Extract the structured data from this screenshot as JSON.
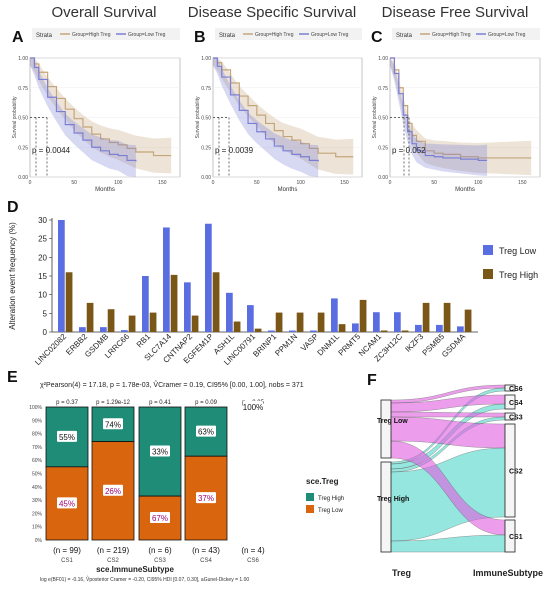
{
  "panels": {
    "A": {
      "label": "A",
      "title": "Overall Survival",
      "p": "p = 0.0044"
    },
    "B": {
      "label": "B",
      "title": "Disease Specific Survival",
      "p": "p = 0.0039"
    },
    "C": {
      "label": "C",
      "title": "Disease Free Survival",
      "p": "p = 0.052"
    }
  },
  "km_common": {
    "strata_label": "Strata",
    "legend_high": "Group=High Treg",
    "legend_low": "Group=Low Treg",
    "ylabel": "Survival probability",
    "xlabel": "Months",
    "yticks": [
      "1.00",
      "0.75",
      "0.50",
      "0.25",
      "0.00"
    ],
    "xticks": [
      "0",
      "50",
      "100",
      "150"
    ],
    "colors": {
      "high": "#c4a57a",
      "low": "#7b7fd4"
    }
  },
  "panel_D": {
    "label": "D"
  },
  "panel_E": {
    "label": "E",
    "stats_line": "χ²Pearson(4) = 17.18, p = 1.78e-03, V̂Cramer = 0.19, CI95% [0.00, 1.00], nobs = 371",
    "bayes_line": "log e(BF01) = -0.16, V̂posterior Cramer = -0.20, CI95% HDI [0.07, 0.30], aGunel-Dickey = 1.00",
    "xlabel": "sce.ImmuneSubtype",
    "legend_title": "sce.Treg",
    "legend": [
      "Treg High",
      "Treg Low"
    ],
    "colors": {
      "high": "#1f8c77",
      "low": "#d9660f"
    },
    "yticks": [
      "100%",
      "90%",
      "80%",
      "70%",
      "60%",
      "50%",
      "40%",
      "30%",
      "20%",
      "10%",
      "0%"
    ],
    "bars": [
      {
        "cat": "CS1",
        "p": "p = 0.37",
        "n": "(n = 99)",
        "high": "55%",
        "low": "45%",
        "high_frac": 0.55
      },
      {
        "cat": "CS2",
        "p": "p = 1.29e-12",
        "n": "(n = 219)",
        "high": "74%",
        "low": "26%",
        "high_frac": 0.74
      },
      {
        "cat": "CS3",
        "p": "p = 0.41",
        "n": "(n = 6)",
        "high": "33%",
        "low": "67%",
        "high_frac": 0.33
      },
      {
        "cat": "CS4",
        "p": "p = 0.09",
        "n": "(n = 43)",
        "high": "63%",
        "low": "37%",
        "high_frac": 0.63
      },
      {
        "cat": "CS6",
        "p": "p = 0.05",
        "n": "(n = 4)",
        "high": "100%",
        "low": "",
        "high_frac": 1.0
      }
    ]
  },
  "panel_F": {
    "label": "F",
    "left_axis": "Treg",
    "right_axis": "ImmuneSubtype",
    "left_nodes": [
      "Treg Low",
      "Treg High"
    ],
    "right_nodes": [
      "CS6",
      "CS4",
      "CS3",
      "CS2",
      "CS1"
    ]
  },
  "chart_data": [
    {
      "type": "bar",
      "title": "",
      "ylabel": "Alteration event frequency (%)",
      "ylim": [
        0,
        30
      ],
      "yticks": [
        0,
        5,
        10,
        15,
        20,
        25,
        30
      ],
      "categories": [
        "LINC02082",
        "ERBB2",
        "GSDMB",
        "LRRC66",
        "RB1",
        "SLC7A14",
        "CNTNAP2",
        "EGFEM1P",
        "ASH1L",
        "LINC00791",
        "BRINP1",
        "PPM1N",
        "VASP",
        "DNM1L",
        "PRMT5",
        "NCAM1",
        "ZC3H12C",
        "IKZF3",
        "PSMB5",
        "GSDMA"
      ],
      "series": [
        {
          "name": "Treg Low",
          "color": "#5b6ee1",
          "values": [
            30,
            1.3,
            1.3,
            0.5,
            15,
            28,
            13.3,
            29,
            10.5,
            7.2,
            0.4,
            0.4,
            0.4,
            9,
            2.3,
            5.3,
            5.3,
            1.9,
            1.9,
            1.5
          ]
        },
        {
          "name": "Treg High",
          "color": "#7a5716",
          "values": [
            16,
            7.8,
            6.1,
            4.4,
            5.2,
            15.3,
            4.4,
            16,
            2.8,
            0.9,
            5.2,
            5.2,
            5.2,
            2.1,
            8.6,
            0.4,
            0.4,
            7.8,
            7.8,
            6
          ]
        }
      ]
    },
    {
      "type": "line",
      "title": "Overall Survival",
      "xlabel": "Months",
      "ylabel": "Survival probability",
      "xlim": [
        0,
        170
      ],
      "ylim": [
        0,
        1
      ],
      "series": [
        {
          "name": "Group=High Treg",
          "x": [
            0,
            5,
            10,
            20,
            30,
            40,
            50,
            60,
            70,
            80,
            90,
            100,
            110,
            120,
            140,
            160
          ],
          "y": [
            1,
            0.95,
            0.88,
            0.76,
            0.66,
            0.57,
            0.49,
            0.42,
            0.36,
            0.32,
            0.29,
            0.27,
            0.24,
            0.21,
            0.18,
            0.18
          ]
        },
        {
          "name": "Group=Low Treg",
          "x": [
            0,
            5,
            10,
            20,
            30,
            40,
            50,
            60,
            70,
            80,
            90,
            100,
            110,
            120
          ],
          "y": [
            1,
            0.92,
            0.82,
            0.67,
            0.55,
            0.44,
            0.37,
            0.31,
            0.25,
            0.22,
            0.19,
            0.18,
            0.14,
            0.13
          ]
        }
      ],
      "p": 0.0044
    },
    {
      "type": "line",
      "title": "Disease Specific Survival",
      "xlabel": "Months",
      "ylabel": "Survival probability",
      "xlim": [
        0,
        170
      ],
      "ylim": [
        0,
        1
      ],
      "series": [
        {
          "name": "Group=High Treg",
          "x": [
            0,
            5,
            10,
            20,
            30,
            40,
            50,
            60,
            70,
            80,
            90,
            100,
            110,
            120,
            140,
            160
          ],
          "y": [
            1,
            0.96,
            0.9,
            0.79,
            0.68,
            0.6,
            0.52,
            0.45,
            0.39,
            0.34,
            0.31,
            0.28,
            0.24,
            0.2,
            0.17,
            0.17
          ]
        },
        {
          "name": "Group=Low Treg",
          "x": [
            0,
            5,
            10,
            20,
            30,
            40,
            50,
            60,
            70,
            80,
            90,
            100,
            110,
            120
          ],
          "y": [
            1,
            0.93,
            0.84,
            0.69,
            0.56,
            0.45,
            0.38,
            0.32,
            0.26,
            0.22,
            0.19,
            0.17,
            0.14,
            0.13
          ]
        }
      ],
      "p": 0.0039
    },
    {
      "type": "line",
      "title": "Disease Free Survival",
      "xlabel": "Months",
      "ylabel": "Survival probability",
      "xlim": [
        0,
        170
      ],
      "ylim": [
        0,
        1
      ],
      "series": [
        {
          "name": "Group=High Treg",
          "x": [
            0,
            5,
            10,
            15,
            20,
            25,
            30,
            40,
            50,
            60,
            80,
            100,
            120,
            140,
            160
          ],
          "y": [
            1,
            0.9,
            0.75,
            0.6,
            0.45,
            0.35,
            0.3,
            0.22,
            0.2,
            0.19,
            0.17,
            0.16,
            0.16,
            0.16,
            0.16
          ]
        },
        {
          "name": "Group=Low Treg",
          "x": [
            0,
            5,
            10,
            15,
            20,
            25,
            30,
            40,
            50,
            60,
            80,
            100,
            110
          ],
          "y": [
            1,
            0.87,
            0.7,
            0.52,
            0.38,
            0.28,
            0.22,
            0.18,
            0.17,
            0.16,
            0.15,
            0.14,
            0.14
          ]
        }
      ],
      "p": 0.052
    }
  ]
}
